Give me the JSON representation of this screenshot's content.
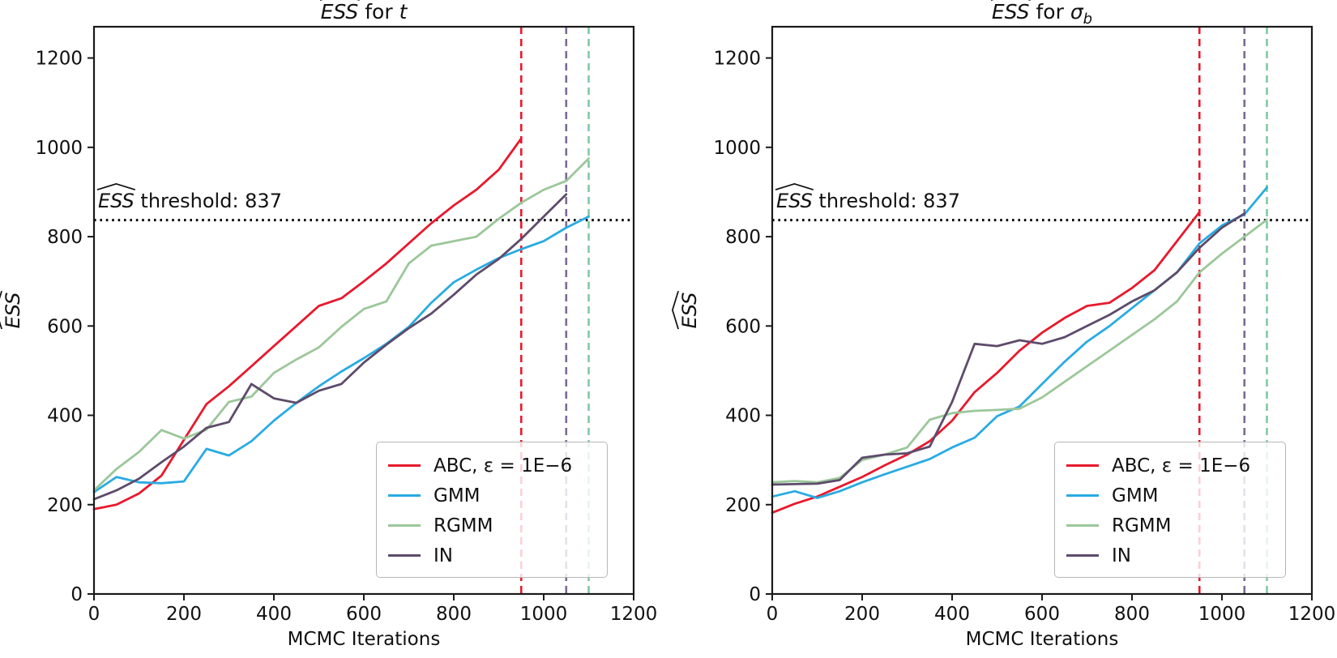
{
  "palette": {
    "abc": "#e8192d",
    "gmm": "#29abe2",
    "rgmm": "#9cc79a",
    "in": "#5e4b6b",
    "vline_abc": "#e8192d",
    "vline_in": "#7a6a93",
    "vline_rgmm": "#80c9a5",
    "axis": "#1a1a1a",
    "threshold_line": "#000000"
  },
  "axes": {
    "xlabel": "MCMC Iterations",
    "ylabel_hat": "ESS",
    "xticks": [
      0,
      200,
      400,
      600,
      800,
      1000,
      1200
    ],
    "yticks": [
      0,
      200,
      400,
      600,
      800,
      1000,
      1200
    ],
    "xlim": [
      0,
      1200
    ],
    "ylim": [
      0,
      1270
    ]
  },
  "threshold": {
    "value": 837,
    "hat": "ESS",
    "rest": " threshold: 837"
  },
  "legend": [
    {
      "key": "abc",
      "label": "ABC, ε = 1E−6"
    },
    {
      "key": "gmm",
      "label": "GMM"
    },
    {
      "key": "rgmm",
      "label": "RGMM"
    },
    {
      "key": "in",
      "label": "IN"
    }
  ],
  "chart_data": [
    {
      "type": "line",
      "title": {
        "hat": "ESS",
        "mid": " for ",
        "var": "t",
        "var_sub": ""
      },
      "xlabel": "MCMC Iterations",
      "ylabel": "ESS",
      "xlim": [
        0,
        1200
      ],
      "ylim": [
        0,
        1270
      ],
      "x_start": 0,
      "x_step": 50,
      "threshold": 837,
      "grid": false,
      "legend_position": "lower right",
      "vlines": [
        {
          "x": 950,
          "key": "vline_abc"
        },
        {
          "x": 1050,
          "key": "vline_in"
        },
        {
          "x": 1100,
          "key": "vline_rgmm"
        }
      ],
      "series": [
        {
          "name": "ABC, ε = 1E−6",
          "key": "abc",
          "values": [
            190,
            200,
            225,
            265,
            345,
            425,
            465,
            510,
            555,
            600,
            645,
            662,
            700,
            740,
            785,
            830,
            870,
            905,
            950,
            1020
          ]
        },
        {
          "name": "GMM",
          "key": "gmm",
          "values": [
            228,
            262,
            250,
            248,
            252,
            325,
            310,
            342,
            388,
            428,
            465,
            498,
            528,
            560,
            598,
            652,
            698,
            726,
            752,
            772,
            790,
            820,
            845
          ]
        },
        {
          "name": "RGMM",
          "key": "rgmm",
          "values": [
            232,
            280,
            318,
            367,
            348,
            368,
            430,
            442,
            495,
            525,
            552,
            598,
            638,
            655,
            740,
            780,
            790,
            800,
            840,
            876,
            905,
            925,
            975
          ]
        },
        {
          "name": "IN",
          "key": "in",
          "values": [
            212,
            232,
            258,
            295,
            330,
            372,
            385,
            470,
            438,
            428,
            455,
            470,
            518,
            558,
            595,
            628,
            670,
            715,
            750,
            795,
            845,
            895
          ]
        }
      ]
    },
    {
      "type": "line",
      "title": {
        "hat": "ESS",
        "mid": " for ",
        "var": "σ",
        "var_sub": "b"
      },
      "xlabel": "MCMC Iterations",
      "ylabel": "ESS",
      "xlim": [
        0,
        1200
      ],
      "ylim": [
        0,
        1270
      ],
      "x_start": 0,
      "x_step": 50,
      "threshold": 837,
      "grid": false,
      "legend_position": "lower right",
      "vlines": [
        {
          "x": 950,
          "key": "vline_abc"
        },
        {
          "x": 1050,
          "key": "vline_in"
        },
        {
          "x": 1100,
          "key": "vline_rgmm"
        }
      ],
      "series": [
        {
          "name": "ABC, ε = 1E−6",
          "key": "abc",
          "values": [
            182,
            202,
            218,
            240,
            262,
            288,
            312,
            342,
            388,
            452,
            495,
            545,
            585,
            618,
            645,
            652,
            685,
            725,
            790,
            855
          ]
        },
        {
          "name": "GMM",
          "key": "gmm",
          "values": [
            218,
            230,
            215,
            230,
            250,
            268,
            285,
            302,
            328,
            350,
            398,
            420,
            470,
            520,
            565,
            600,
            640,
            680,
            720,
            785,
            825,
            850,
            910
          ]
        },
        {
          "name": "RGMM",
          "key": "rgmm",
          "values": [
            250,
            253,
            250,
            260,
            300,
            312,
            328,
            390,
            405,
            410,
            412,
            415,
            440,
            475,
            510,
            545,
            580,
            615,
            655,
            720,
            762,
            800,
            838
          ]
        },
        {
          "name": "IN",
          "key": "in",
          "values": [
            245,
            246,
            247,
            255,
            305,
            312,
            315,
            330,
            430,
            560,
            555,
            568,
            560,
            575,
            600,
            625,
            655,
            680,
            720,
            775,
            820,
            852
          ]
        }
      ]
    }
  ]
}
